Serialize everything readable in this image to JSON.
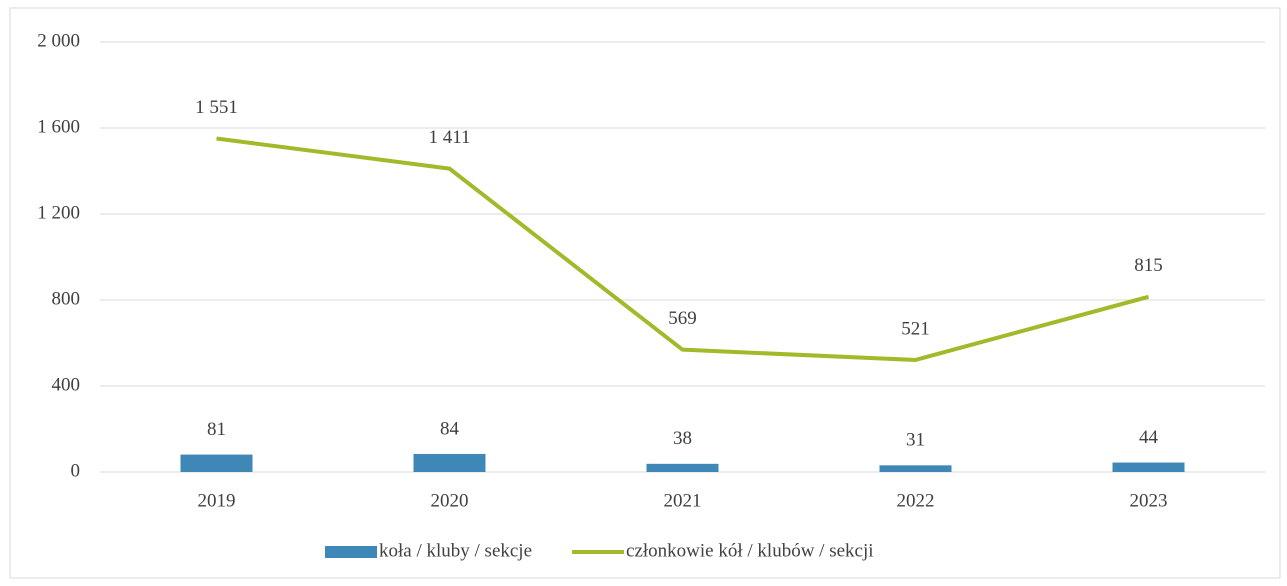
{
  "chart_data": {
    "type": "combo",
    "categories": [
      "2019",
      "2020",
      "2021",
      "2022",
      "2023"
    ],
    "series": [
      {
        "name": "koła / kluby / sekcje",
        "type": "bar",
        "color": "#3f87b6",
        "values": [
          81,
          84,
          38,
          31,
          44
        ]
      },
      {
        "name": "członkowie kół / klubów / sekcji",
        "type": "line",
        "color": "#a2b92a",
        "values": [
          1551,
          1411,
          569,
          521,
          815
        ],
        "value_labels": [
          "1 551",
          "1 411",
          "569",
          "521",
          "815"
        ]
      }
    ],
    "ylim": [
      0,
      2000
    ],
    "yticks": [
      0,
      400,
      800,
      {
        "value": 1200,
        "label": "1 200"
      },
      {
        "value": 1600,
        "label": "1 600"
      },
      {
        "value": 2000,
        "label": "2 000"
      }
    ],
    "grid": true,
    "legend": "bottom"
  }
}
